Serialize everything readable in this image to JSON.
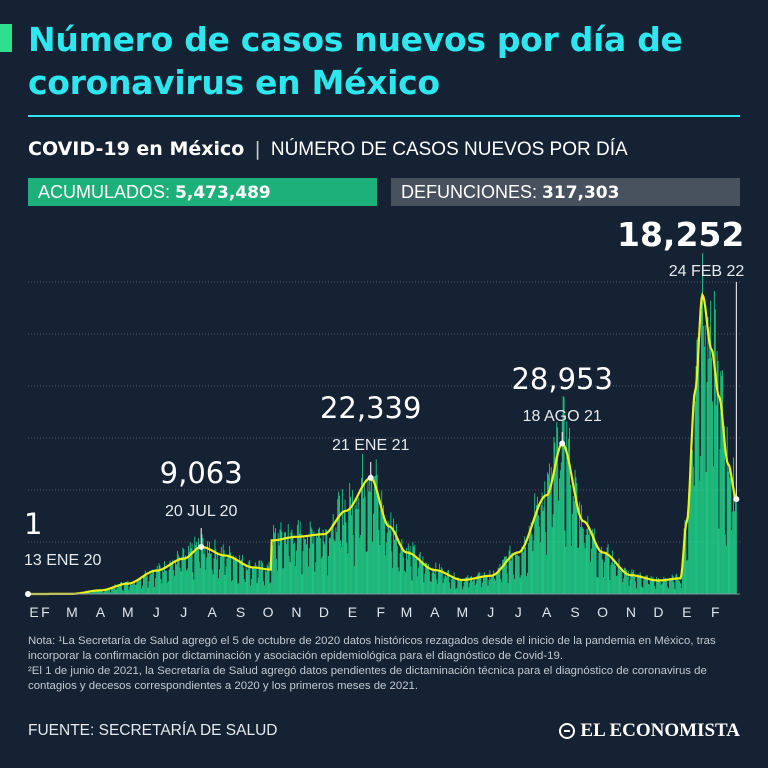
{
  "header": {
    "title": "Número de casos nuevos por día de coronavirus en México",
    "subtitle_bold": "COVID-19 en México",
    "subtitle_sep": "|",
    "subtitle_rest": "NÚMERO DE CASOS NUEVOS POR DÍA"
  },
  "stats": {
    "accumulated_label": "ACUMULADOS:",
    "accumulated_value": "5,473,489",
    "deaths_label": "DEFUNCIONES:",
    "deaths_value": "317,303"
  },
  "colors": {
    "background": "#152233",
    "title": "#2ee6ee",
    "bars": "#22d98c",
    "line": "#e8f21a",
    "accumulated_bg": "#1db07a",
    "deaths_bg": "#48525e"
  },
  "chart_data": {
    "type": "bar",
    "x_start": "2020-01-13",
    "x_end": "2022-02-28",
    "ylim": [
      0,
      60000
    ],
    "grid": true,
    "month_labels": [
      "E",
      "F",
      "M",
      "A",
      "M",
      "J",
      "J",
      "A",
      "S",
      "O",
      "N",
      "D",
      "E",
      "F",
      "M",
      "A",
      "M",
      "J",
      "J",
      "A",
      "S",
      "O",
      "N",
      "D",
      "E",
      "F"
    ],
    "smoothed_series": [
      {
        "date": "2020-01-13",
        "value": 1
      },
      {
        "date": "2020-03-01",
        "value": 20
      },
      {
        "date": "2020-04-01",
        "value": 700
      },
      {
        "date": "2020-05-01",
        "value": 2000
      },
      {
        "date": "2020-06-01",
        "value": 4500
      },
      {
        "date": "2020-07-01",
        "value": 6800
      },
      {
        "date": "2020-07-20",
        "value": 9063
      },
      {
        "date": "2020-08-15",
        "value": 7400
      },
      {
        "date": "2020-09-15",
        "value": 5100
      },
      {
        "date": "2020-10-04",
        "value": 4700
      },
      {
        "date": "2020-10-05",
        "value": 10300
      },
      {
        "date": "2020-11-01",
        "value": 11000
      },
      {
        "date": "2020-12-01",
        "value": 11500
      },
      {
        "date": "2020-12-25",
        "value": 16000
      },
      {
        "date": "2021-01-21",
        "value": 22339
      },
      {
        "date": "2021-02-10",
        "value": 13000
      },
      {
        "date": "2021-03-01",
        "value": 8000
      },
      {
        "date": "2021-04-01",
        "value": 4600
      },
      {
        "date": "2021-05-01",
        "value": 2700
      },
      {
        "date": "2021-06-01",
        "value": 3500
      },
      {
        "date": "2021-07-01",
        "value": 8000
      },
      {
        "date": "2021-08-01",
        "value": 19000
      },
      {
        "date": "2021-08-18",
        "value": 28953
      },
      {
        "date": "2021-09-10",
        "value": 14000
      },
      {
        "date": "2021-10-01",
        "value": 8000
      },
      {
        "date": "2021-11-01",
        "value": 3600
      },
      {
        "date": "2021-12-01",
        "value": 2600
      },
      {
        "date": "2021-12-25",
        "value": 3000
      },
      {
        "date": "2022-01-01",
        "value": 14000
      },
      {
        "date": "2022-01-10",
        "value": 39000
      },
      {
        "date": "2022-01-18",
        "value": 57500
      },
      {
        "date": "2022-01-28",
        "value": 47000
      },
      {
        "date": "2022-02-05",
        "value": 38000
      },
      {
        "date": "2022-02-15",
        "value": 25000
      },
      {
        "date": "2022-02-24",
        "value": 18252
      }
    ],
    "annotations": [
      {
        "date": "2020-01-13",
        "value": 1,
        "label_value": "1",
        "label_date": "13 ENE 20"
      },
      {
        "date": "2020-07-20",
        "value": 9063,
        "label_value": "9,063",
        "label_date": "20 JUL 20"
      },
      {
        "date": "2021-01-21",
        "value": 22339,
        "label_value": "22,339",
        "label_date": "21 ENE 21"
      },
      {
        "date": "2021-08-18",
        "value": 28953,
        "label_value": "28,953",
        "label_date": "18 AGO 21"
      },
      {
        "date": "2022-02-24",
        "value": 18252,
        "label_value": "18,252",
        "label_date": "24 FEB 22"
      }
    ]
  },
  "notes": {
    "line1": "Nota: ¹La Secretaría de Salud agregó el 5 de octubre de 2020 datos históricos rezagados desde el inicio de la pandemia en México, tras incorporar la confirmación por dictaminación y asociación epidemiológica para el diagnóstico de Covid-19.",
    "line2": "²El 1 de junio de 2021, la Secretaría de Salud agregó datos pendientes de dictaminación técnica para el diagnóstico de coronavirus de contagios y decesos correspondientes a 2020 y los primeros meses de 2021."
  },
  "footer": {
    "source": "FUENTE: SECRETARÍA DE SALUD",
    "brand": "EL ECONOMISTA"
  }
}
